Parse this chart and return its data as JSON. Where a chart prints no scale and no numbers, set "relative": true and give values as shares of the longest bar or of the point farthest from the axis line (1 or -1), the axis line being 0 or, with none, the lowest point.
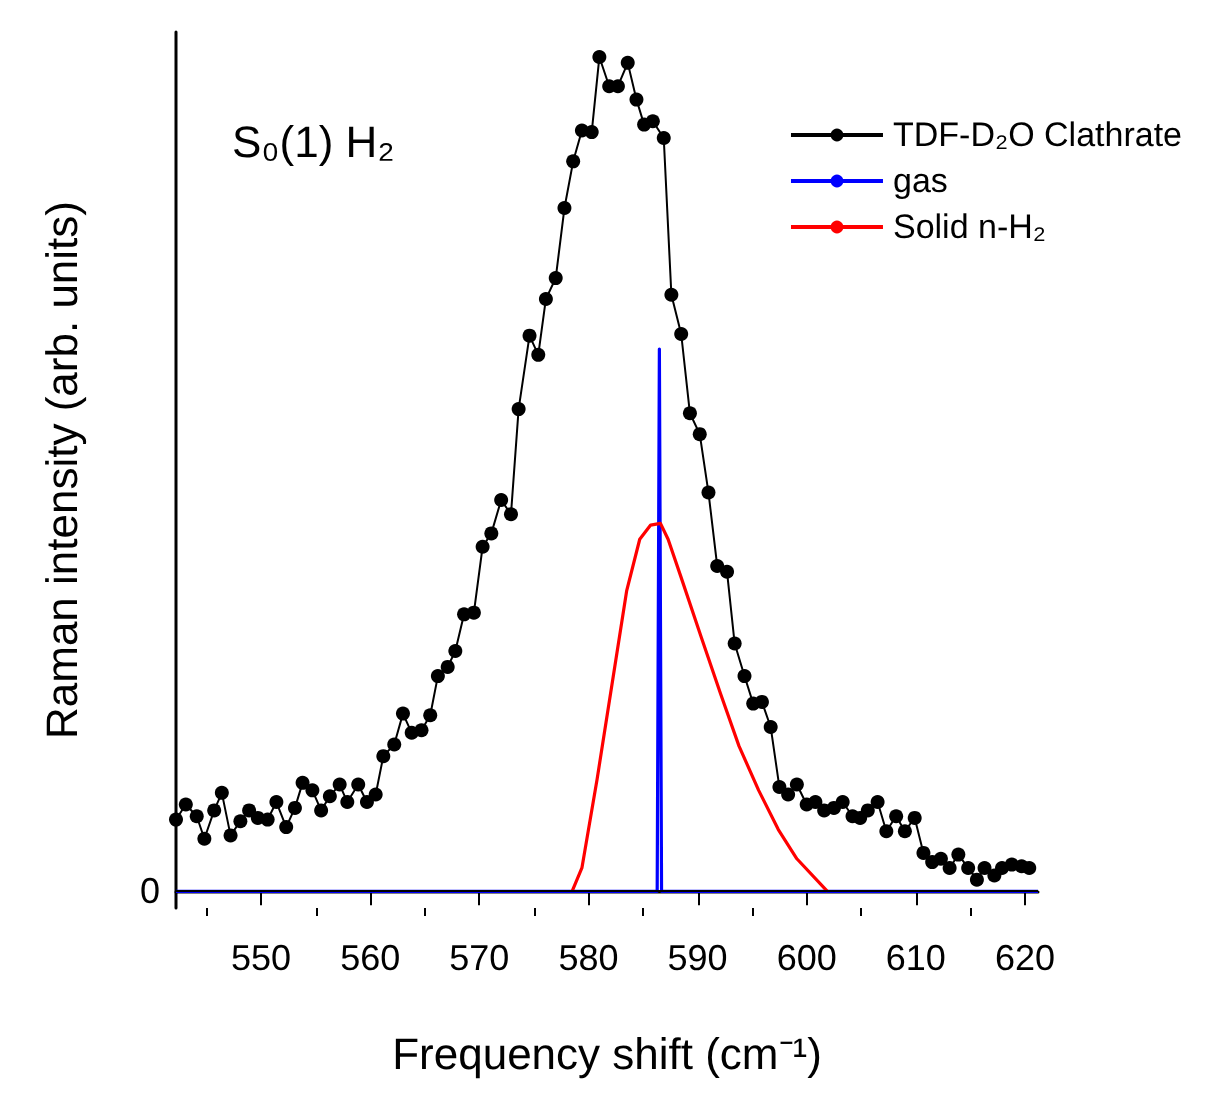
{
  "chart_data": {
    "type": "line",
    "relative": true,
    "xlabel": "Frequency shift (cm⁻¹)",
    "ylabel": "Raman intensity (arb. units)",
    "annotations": [
      "S₀(1) H₂"
    ],
    "xlim": [
      542.2,
      621.2
    ],
    "xticks": [
      550,
      560,
      570,
      580,
      590,
      600,
      610,
      620
    ],
    "legend": "top right",
    "grid": false,
    "ref_lines": [
      {
        "axis": "y",
        "value": 0,
        "label": "0"
      }
    ],
    "series": [
      {
        "name": "TDF-D₂O Clathrate",
        "color": "#000000",
        "marker": "circle",
        "x": [
          542.2,
          543.1,
          544.1,
          544.8,
          545.7,
          546.4,
          547.2,
          548.1,
          548.9,
          549.7,
          550.6,
          551.4,
          552.3,
          553.1,
          553.8,
          554.7,
          555.5,
          556.3,
          557.2,
          557.9,
          558.9,
          559.7,
          560.5,
          561.2,
          562.2,
          563.0,
          563.8,
          564.7,
          565.5,
          566.2,
          567.1,
          567.8,
          568.6,
          569.5,
          570.3,
          571.1,
          572.0,
          572.9,
          573.6,
          574.6,
          575.4,
          576.1,
          577.0,
          577.8,
          578.6,
          579.4,
          580.3,
          581.0,
          581.9,
          582.7,
          583.6,
          584.4,
          585.1,
          585.9,
          586.9,
          587.6,
          588.5,
          589.3,
          590.2,
          591.0,
          591.8,
          592.7,
          593.4,
          594.3,
          595.1,
          595.9,
          596.7,
          597.5,
          598.3,
          599.1,
          600.0,
          600.8,
          601.6,
          602.5,
          603.3,
          604.2,
          604.9,
          605.6,
          606.5,
          607.3,
          608.2,
          609.0,
          609.9,
          610.7,
          611.5,
          612.3,
          613.1,
          613.9,
          614.8,
          615.6,
          616.3,
          617.2,
          617.9,
          618.8,
          619.7,
          620.4
        ],
        "values": [
          0.086,
          0.104,
          0.09,
          0.063,
          0.097,
          0.118,
          0.067,
          0.084,
          0.097,
          0.088,
          0.086,
          0.107,
          0.077,
          0.1,
          0.13,
          0.121,
          0.097,
          0.114,
          0.128,
          0.107,
          0.128,
          0.107,
          0.116,
          0.162,
          0.176,
          0.213,
          0.19,
          0.193,
          0.211,
          0.258,
          0.269,
          0.288,
          0.332,
          0.334,
          0.413,
          0.429,
          0.469,
          0.452,
          0.578,
          0.666,
          0.643,
          0.71,
          0.735,
          0.819,
          0.875,
          0.912,
          0.91,
          1,
          0.965,
          0.965,
          0.993,
          0.949,
          0.919,
          0.923,
          0.903,
          0.715,
          0.668,
          0.573,
          0.548,
          0.478,
          0.39,
          0.383,
          0.297,
          0.258,
          0.225,
          0.227,
          0.197,
          0.125,
          0.116,
          0.128,
          0.104,
          0.107,
          0.097,
          0.1,
          0.107,
          0.09,
          0.088,
          0.097,
          0.107,
          0.072,
          0.09,
          0.072,
          0.088,
          0.046,
          0.035,
          0.039,
          0.028,
          0.044,
          0.028,
          0.014,
          0.028,
          0.019,
          0.028,
          0.032,
          0.03,
          0.028
        ]
      },
      {
        "name": "gas",
        "color": "#0000ff",
        "marker": "none",
        "x": [
          542.2,
          586.3,
          586.5,
          586.7,
          621.2
        ],
        "values": [
          0,
          0,
          0.65,
          0,
          0
        ]
      },
      {
        "name": "Solid n-H₂",
        "color": "#ff0000",
        "marker": "none",
        "x": [
          578.5,
          579.4,
          580.8,
          582.3,
          583.5,
          584.7,
          585.7,
          586.6,
          587.3,
          588.5,
          590.3,
          592.1,
          593.8,
          595.6,
          597.4,
          599.1,
          601.9
        ],
        "values": [
          0,
          0.028,
          0.135,
          0.26,
          0.36,
          0.422,
          0.439,
          0.441,
          0.422,
          0.376,
          0.306,
          0.237,
          0.174,
          0.121,
          0.074,
          0.039,
          0
        ]
      }
    ]
  }
}
